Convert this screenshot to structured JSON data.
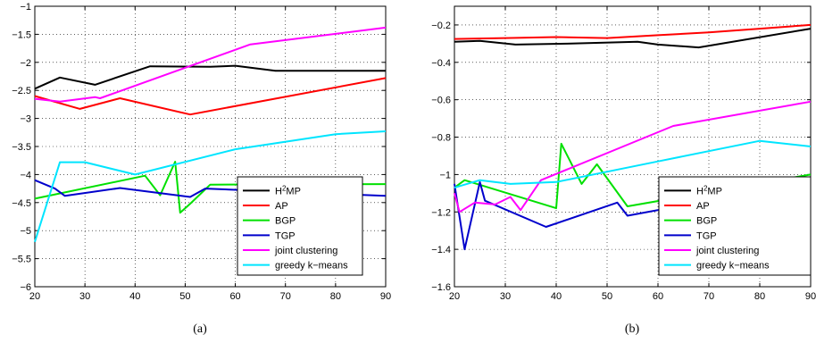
{
  "chart_data": [
    {
      "type": "line",
      "caption": "(a)",
      "xlim": [
        20,
        90
      ],
      "ylim": [
        -6,
        -1
      ],
      "xticks": [
        20,
        30,
        40,
        50,
        60,
        70,
        80,
        90
      ],
      "yticks": [
        -6,
        -5.5,
        -5,
        -4.5,
        -4,
        -3.5,
        -3,
        -2.5,
        -2,
        -1.5,
        -1
      ],
      "ytick_labels": [
        "−6",
        "−5.5",
        "−5",
        "−4.5",
        "−4",
        "−3.5",
        "−3",
        "−2.5",
        "−2",
        "−1.5",
        "−1"
      ],
      "grid": true,
      "legend_position": "lower-right",
      "series": [
        {
          "name": "H²MP",
          "name_main": "H",
          "name_sup": "2",
          "name_rest": "MP",
          "color": "#000000",
          "x": [
            20,
            25,
            32,
            43,
            55,
            60,
            68,
            90
          ],
          "y": [
            -2.47,
            -2.27,
            -2.4,
            -2.07,
            -2.08,
            -2.06,
            -2.15,
            -2.15
          ]
        },
        {
          "name": "AP",
          "color": "#ff0000",
          "x": [
            20,
            29,
            37,
            51,
            90
          ],
          "y": [
            -2.6,
            -2.83,
            -2.64,
            -2.93,
            -2.28
          ]
        },
        {
          "name": "BGP",
          "color": "#00e000",
          "x": [
            20,
            42,
            45,
            48,
            49,
            51,
            55,
            90
          ],
          "y": [
            -4.43,
            -4.02,
            -4.37,
            -3.77,
            -4.68,
            -4.52,
            -4.18,
            -4.17
          ]
        },
        {
          "name": "TGP",
          "color": "#0000cc",
          "x": [
            20,
            24,
            26,
            37,
            51,
            54,
            90
          ],
          "y": [
            -4.1,
            -4.25,
            -4.38,
            -4.24,
            -4.4,
            -4.25,
            -4.38
          ]
        },
        {
          "name": "joint clustering",
          "color": "#ff00ff",
          "x": [
            20,
            25,
            32,
            33,
            63,
            90
          ],
          "y": [
            -2.65,
            -2.7,
            -2.62,
            -2.64,
            -1.68,
            -1.38
          ]
        },
        {
          "name": "greedy k−means",
          "color": "#00e5ff",
          "x": [
            20,
            25,
            30,
            40,
            60,
            80,
            90
          ],
          "y": [
            -5.2,
            -3.78,
            -3.78,
            -4.0,
            -3.55,
            -3.28,
            -3.23
          ]
        }
      ]
    },
    {
      "type": "line",
      "caption": "(b)",
      "xlim": [
        20,
        90
      ],
      "ylim": [
        -1.6,
        -0.1
      ],
      "xticks": [
        20,
        30,
        40,
        50,
        60,
        70,
        80,
        90
      ],
      "yticks": [
        -1.6,
        -1.4,
        -1.2,
        -1,
        -0.8,
        -0.6,
        -0.4,
        -0.2
      ],
      "ytick_labels": [
        "−1.6",
        "−1.4",
        "−1.2",
        "−1",
        "−0.8",
        "−0.6",
        "−0.4",
        "−0.2"
      ],
      "grid": true,
      "legend_position": "lower-right",
      "series": [
        {
          "name": "H²MP",
          "name_main": "H",
          "name_sup": "2",
          "name_rest": "MP",
          "color": "#000000",
          "x": [
            20,
            25,
            32,
            42,
            56,
            60,
            68,
            90
          ],
          "y": [
            -0.29,
            -0.285,
            -0.305,
            -0.3,
            -0.29,
            -0.305,
            -0.32,
            -0.22
          ]
        },
        {
          "name": "AP",
          "color": "#ff0000",
          "x": [
            20,
            30,
            40,
            50,
            60,
            70,
            80,
            90
          ],
          "y": [
            -0.275,
            -0.27,
            -0.265,
            -0.27,
            -0.255,
            -0.24,
            -0.22,
            -0.2
          ]
        },
        {
          "name": "BGP",
          "color": "#00e000",
          "x": [
            20,
            22,
            40,
            41,
            45,
            48,
            54,
            90
          ],
          "y": [
            -1.07,
            -1.03,
            -1.18,
            -0.835,
            -1.05,
            -0.945,
            -1.17,
            -1.0
          ]
        },
        {
          "name": "TGP",
          "color": "#0000cc",
          "x": [
            20,
            22,
            25,
            26,
            38,
            52,
            54,
            80,
            90
          ],
          "y": [
            -1.05,
            -1.4,
            -1.04,
            -1.14,
            -1.28,
            -1.15,
            -1.22,
            -1.09,
            -1.1
          ]
        },
        {
          "name": "joint clustering",
          "color": "#ff00ff",
          "x": [
            20,
            21,
            24,
            28,
            31,
            33,
            37,
            63,
            90
          ],
          "y": [
            -1.1,
            -1.2,
            -1.15,
            -1.16,
            -1.12,
            -1.19,
            -1.03,
            -0.74,
            -0.61
          ]
        },
        {
          "name": "greedy k−means",
          "color": "#00e5ff",
          "x": [
            20,
            25,
            31,
            40,
            60,
            80,
            90
          ],
          "y": [
            -1.07,
            -1.03,
            -1.05,
            -1.04,
            -0.93,
            -0.82,
            -0.85
          ]
        }
      ]
    }
  ]
}
